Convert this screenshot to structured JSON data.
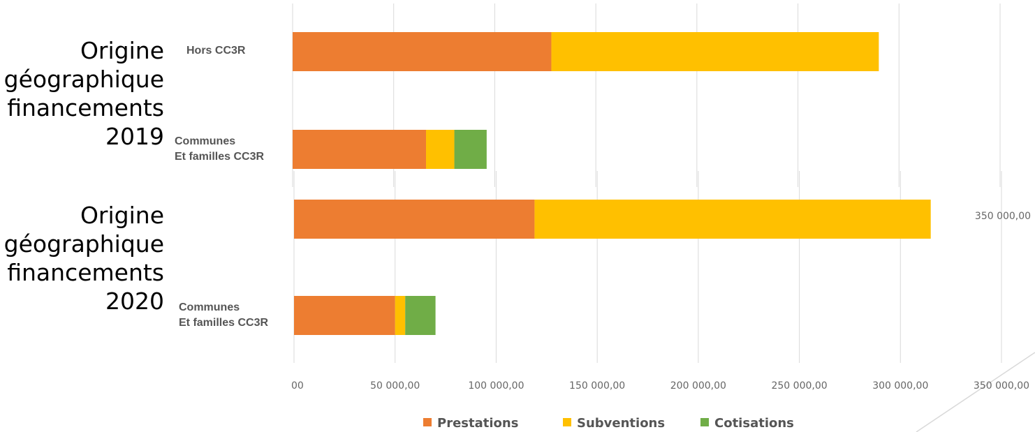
{
  "panel_labels": [
    [
      "Origine",
      "géographique",
      "financements",
      "2019"
    ],
    [
      "Origine",
      "géographique",
      "financements",
      "2020"
    ]
  ],
  "colors": {
    "Prestations": "#ed7d31",
    "Subventions": "#ffc000",
    "Cotisations": "#70ad47",
    "grid": "#d9d9d9"
  },
  "chart_data": [
    {
      "type": "bar",
      "orientation": "horizontal",
      "stacked": true,
      "categories": [
        "Hors CC3R",
        "Communes\nEt familles CC3R"
      ],
      "series": [
        {
          "name": "Prestations",
          "values": [
            128000,
            66000
          ]
        },
        {
          "name": "Subventions",
          "values": [
            162000,
            14000
          ]
        },
        {
          "name": "Cotisations",
          "values": [
            0,
            16000
          ]
        }
      ],
      "xlim": [
        0,
        350000
      ],
      "grid": true
    },
    {
      "type": "bar",
      "orientation": "horizontal",
      "stacked": true,
      "categories": [
        "",
        "Communes\nEt familles CC3R"
      ],
      "series": [
        {
          "name": "Prestations",
          "values": [
            119000,
            50000
          ]
        },
        {
          "name": "Subventions",
          "values": [
            196000,
            5000
          ]
        },
        {
          "name": "Cotisations",
          "values": [
            0,
            15000
          ]
        }
      ],
      "xlim": [
        0,
        350000
      ],
      "grid": true,
      "xticks": [
        "00",
        "50 000,00",
        "100 000,00",
        "150 000,00",
        "200 000,00",
        "250 000,00",
        "300 000,00",
        "350 000,00"
      ],
      "extra_label": "350 000,00"
    }
  ],
  "legend": [
    "Prestations",
    "Subventions",
    "Cotisations"
  ]
}
